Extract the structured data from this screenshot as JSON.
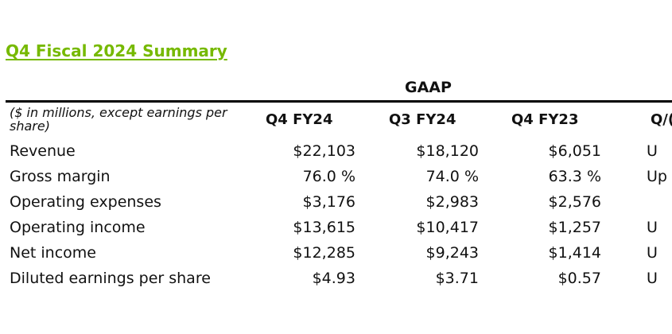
{
  "title": "Q4 Fiscal 2024 Summary",
  "section_header": "GAAP",
  "table": {
    "units_label": "($ in millions, except earnings per share)",
    "columns": [
      "Q4 FY24",
      "Q3 FY24",
      "Q4 FY23",
      "Q/("
    ],
    "rows": [
      {
        "label": "Revenue",
        "values": [
          "$22,103",
          "$18,120",
          "$6,051",
          "U"
        ]
      },
      {
        "label": "Gross margin",
        "values": [
          "76.0 %",
          "74.0 %",
          "63.3 %",
          "Up"
        ]
      },
      {
        "label": "Operating expenses",
        "values": [
          "$3,176",
          "$2,983",
          "$2,576",
          ""
        ]
      },
      {
        "label": "Operating income",
        "values": [
          "$13,615",
          "$10,417",
          "$1,257",
          "U"
        ]
      },
      {
        "label": "Net income",
        "values": [
          "$12,285",
          "$9,243",
          "$1,414",
          "U"
        ]
      },
      {
        "label": "Diluted earnings per share",
        "values": [
          "$4.93",
          "$3.71",
          "$0.57",
          "U"
        ]
      }
    ]
  },
  "colors": {
    "title": "#76b900",
    "rule": "#000000",
    "text": "#111111"
  }
}
